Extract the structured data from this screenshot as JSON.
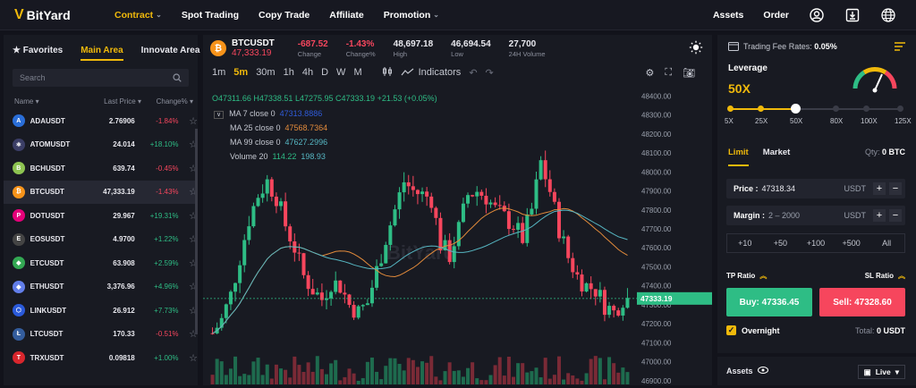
{
  "nav": {
    "brand": "BitYard",
    "items": [
      {
        "label": "Contract",
        "active": true,
        "chevron": true
      },
      {
        "label": "Spot Trading"
      },
      {
        "label": "Copy Trade"
      },
      {
        "label": "Affiliate"
      },
      {
        "label": "Promotion",
        "chevron": true
      }
    ],
    "right": {
      "assets": "Assets",
      "order": "Order"
    },
    "icons": [
      "user-icon",
      "download-icon",
      "globe-icon"
    ],
    "accent": "#f0b90b"
  },
  "left": {
    "tabs": [
      "Favorites",
      "Main Area",
      "Innovate Area"
    ],
    "search_placeholder": "Search",
    "cols": [
      "Name",
      "Last Price",
      "Change%"
    ],
    "rows": [
      {
        "sym": "ADAUSDT",
        "price": "2.76906",
        "chg": "-1.84%",
        "up": false,
        "color": "#2a6ed8",
        "g": "A"
      },
      {
        "sym": "ATOMUSDT",
        "price": "24.014",
        "chg": "+18.10%",
        "up": true,
        "color": "#3b3e66",
        "g": "⚛"
      },
      {
        "sym": "BCHUSDT",
        "price": "639.74",
        "chg": "-0.45%",
        "up": false,
        "color": "#8dc351",
        "g": "B"
      },
      {
        "sym": "BTCUSDT",
        "price": "47,333.19",
        "chg": "-1.43%",
        "up": false,
        "color": "#f7931a",
        "g": "₿",
        "sel": true
      },
      {
        "sym": "DOTUSDT",
        "price": "29.967",
        "chg": "+19.31%",
        "up": true,
        "color": "#e6007a",
        "g": "P"
      },
      {
        "sym": "EOSUSDT",
        "price": "4.9700",
        "chg": "+1.22%",
        "up": true,
        "color": "#444",
        "g": "E"
      },
      {
        "sym": "ETCUSDT",
        "price": "63.908",
        "chg": "+2.59%",
        "up": true,
        "color": "#33a853",
        "g": "◆"
      },
      {
        "sym": "ETHUSDT",
        "price": "3,376.96",
        "chg": "+4.96%",
        "up": true,
        "color": "#627eea",
        "g": "◆"
      },
      {
        "sym": "LINKUSDT",
        "price": "26.912",
        "chg": "+7.73%",
        "up": true,
        "color": "#2a5ada",
        "g": "⬡"
      },
      {
        "sym": "LTCUSDT",
        "price": "170.33",
        "chg": "-0.51%",
        "up": false,
        "color": "#345d9d",
        "g": "Ł"
      },
      {
        "sym": "TRXUSDT",
        "price": "0.09818",
        "chg": "+1.00%",
        "up": true,
        "color": "#d8262d",
        "g": "T"
      }
    ]
  },
  "ticker": {
    "symbol": "BTCUSDT",
    "price": "47,333.19",
    "change": "-687.52",
    "change_label": "Change",
    "change_pct": "-1.43%",
    "change_pct_label": "Change%",
    "high": "48,697.18",
    "high_label": "High",
    "low": "46,694.54",
    "low_label": "Low",
    "volume": "27,700",
    "volume_label": "24H Volume"
  },
  "toolbar": {
    "intervals": [
      "1m",
      "5m",
      "30m",
      "1h",
      "4h",
      "D",
      "W",
      "M"
    ],
    "active": "5m",
    "indicators": "Indicators"
  },
  "chart": {
    "ohlc": {
      "o": "O47311.66",
      "h": "H47338.51",
      "l": "L47275.95",
      "c": "C47333.19",
      "chg": "+21.53 (+0.05%)"
    },
    "ma7": {
      "label": "MA 7 close 0",
      "value": "47313.8886",
      "color": "#2f5bd8"
    },
    "ma25": {
      "label": "MA 25 close 0",
      "value": "47568.7364",
      "color": "#e38b3b"
    },
    "ma99": {
      "label": "MA 99 close 0",
      "value": "47627.2996",
      "color": "#56b6c2"
    },
    "vol": {
      "label": "Volume 20",
      "v1": "114.22",
      "v2": "198.93"
    },
    "price_tag": "47333.19",
    "watermark": "BitYard"
  },
  "chart_data": {
    "type": "candlestick",
    "y_ticks": [
      48400,
      48300,
      48200,
      48100,
      48000,
      47900,
      47800,
      47700,
      47600,
      47500,
      47400,
      47300,
      47200,
      47100,
      47000,
      46900
    ],
    "ylim": [
      46880,
      48440
    ],
    "last": 47333.19
  },
  "right": {
    "fee_label": "Trading Fee Rates:",
    "fee": "0.05%",
    "leverage_label": "Leverage",
    "leverage": "50X",
    "levels": [
      "5X",
      "25X",
      "50X",
      "80X",
      "100X",
      "125X"
    ],
    "level_index": 2,
    "tabs": [
      "Limit",
      "Market"
    ],
    "qty_label": "Qty:",
    "qty": "0 BTC",
    "price_label": "Price :",
    "price": "47318.34",
    "margin_label": "Margin :",
    "margin_placeholder": "2 – 2000",
    "unit": "USDT",
    "quick": [
      "+10",
      "+50",
      "+100",
      "+500",
      "All"
    ],
    "tp": "TP Ratio",
    "sl": "SL Ratio",
    "buy": "Buy: 47336.45",
    "sell": "Sell: 47328.60",
    "overnight": "Overnight",
    "total_label": "Total:",
    "total": "0 USDT",
    "assets": "Assets",
    "live": "Live"
  }
}
